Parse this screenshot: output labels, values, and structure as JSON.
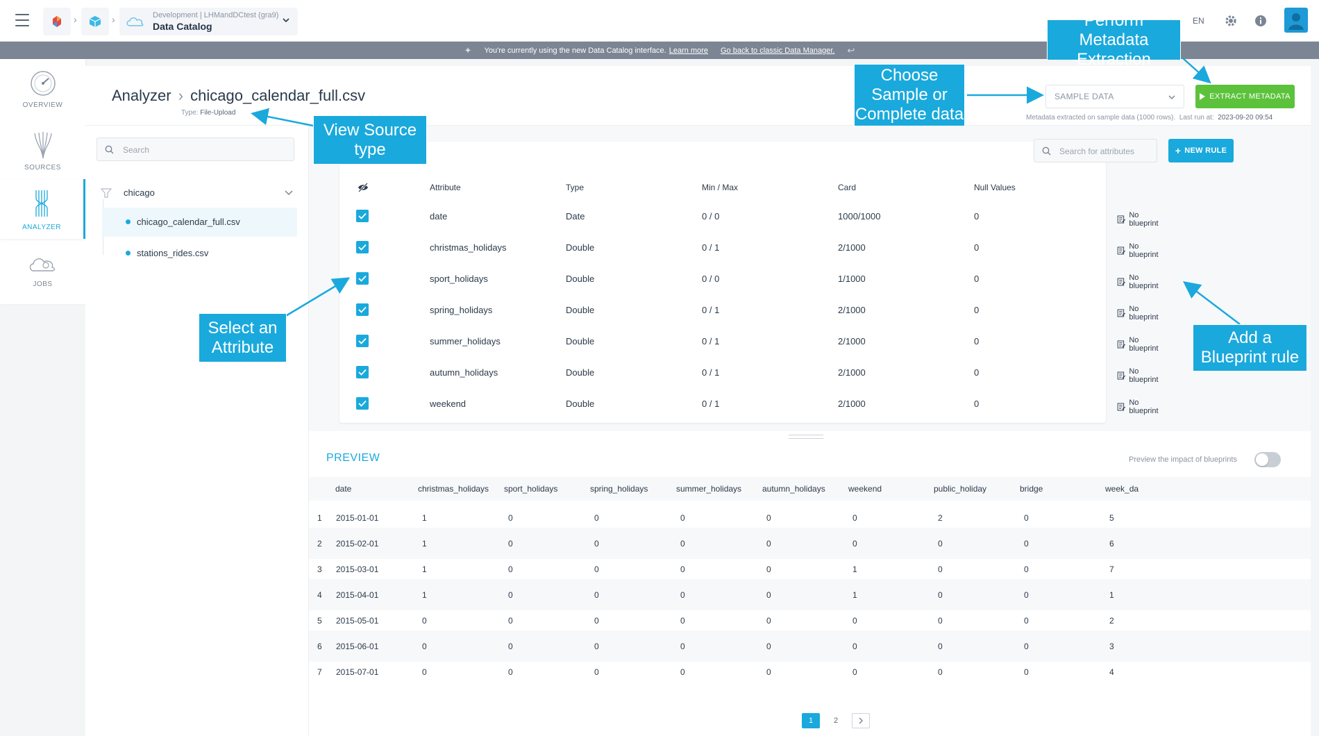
{
  "topbar": {
    "workspace_sub": "Development | LHMandDCtest (gra9)",
    "workspace_title": "Data Catalog",
    "lang": "EN"
  },
  "banner": {
    "text": "You're currently using the new Data Catalog interface.",
    "learn_more": "Learn more",
    "classic_link": "Go back to classic Data Manager."
  },
  "nav": [
    {
      "label": "OVERVIEW",
      "icon": "gauge-icon"
    },
    {
      "label": "SOURCES",
      "icon": "sources-icon"
    },
    {
      "label": "ANALYZER",
      "icon": "analyzer-icon"
    },
    {
      "label": "JOBS",
      "icon": "jobs-icon"
    }
  ],
  "header": {
    "crumb": "Analyzer",
    "file": "chicago_calendar_full.csv",
    "type_label": "Type:",
    "type_value": "File-Upload",
    "sample_select": "SAMPLE DATA",
    "extract_button": "EXTRACT METADATA",
    "meta_info": "Metadata extracted on sample data (1000 rows).",
    "last_run_label": "Last run at:",
    "last_run_value": "2023-09-20 09:54"
  },
  "tree": {
    "search_placeholder": "Search",
    "root": "chicago",
    "files": [
      "chicago_calendar_full.csv",
      "stations_rides.csv"
    ]
  },
  "attributes": {
    "search_placeholder": "Search for attributes",
    "new_rule": "NEW RULE",
    "columns": [
      "Attribute",
      "Type",
      "Min / Max",
      "Card",
      "Null Values"
    ],
    "blueprint_label": "No blueprint",
    "rows": [
      {
        "name": "date",
        "type": "Date",
        "minmax": "0 / 0",
        "card": "1000/1000",
        "nulls": "0"
      },
      {
        "name": "christmas_holidays",
        "type": "Double",
        "minmax": "0 / 1",
        "card": "2/1000",
        "nulls": "0"
      },
      {
        "name": "sport_holidays",
        "type": "Double",
        "minmax": "0 / 0",
        "card": "1/1000",
        "nulls": "0"
      },
      {
        "name": "spring_holidays",
        "type": "Double",
        "minmax": "0 / 1",
        "card": "2/1000",
        "nulls": "0"
      },
      {
        "name": "summer_holidays",
        "type": "Double",
        "minmax": "0 / 1",
        "card": "2/1000",
        "nulls": "0"
      },
      {
        "name": "autumn_holidays",
        "type": "Double",
        "minmax": "0 / 1",
        "card": "2/1000",
        "nulls": "0"
      },
      {
        "name": "weekend",
        "type": "Double",
        "minmax": "0 / 1",
        "card": "2/1000",
        "nulls": "0"
      }
    ]
  },
  "preview": {
    "title": "PREVIEW",
    "toggle_label": "Preview the impact of blueprints",
    "columns": [
      "date",
      "christmas_holidays",
      "sport_holidays",
      "spring_holidays",
      "summer_holidays",
      "autumn_holidays",
      "weekend",
      "public_holiday",
      "bridge",
      "week_da"
    ],
    "rows": [
      [
        "1",
        "2015-01-01",
        "1",
        "0",
        "0",
        "0",
        "0",
        "0",
        "2",
        "0",
        "5"
      ],
      [
        "2",
        "2015-02-01",
        "1",
        "0",
        "0",
        "0",
        "0",
        "0",
        "0",
        "0",
        "6"
      ],
      [
        "3",
        "2015-03-01",
        "1",
        "0",
        "0",
        "0",
        "0",
        "1",
        "0",
        "0",
        "7"
      ],
      [
        "4",
        "2015-04-01",
        "1",
        "0",
        "0",
        "0",
        "0",
        "1",
        "0",
        "0",
        "1"
      ],
      [
        "5",
        "2015-05-01",
        "0",
        "0",
        "0",
        "0",
        "0",
        "0",
        "0",
        "0",
        "2"
      ],
      [
        "6",
        "2015-06-01",
        "0",
        "0",
        "0",
        "0",
        "0",
        "0",
        "0",
        "0",
        "3"
      ],
      [
        "7",
        "2015-07-01",
        "0",
        "0",
        "0",
        "0",
        "0",
        "0",
        "0",
        "0",
        "4"
      ]
    ],
    "pages": [
      "1",
      "2"
    ]
  },
  "annotations": {
    "extract": "Perform Metadata Extraction",
    "sample": "Choose Sample or Complete data",
    "source_type": "View Source type",
    "attribute": "Select an Attribute",
    "blueprint": "Add a Blueprint rule"
  },
  "colors": {
    "accent": "#1aa9dc",
    "extract_green": "#5cc23c"
  }
}
